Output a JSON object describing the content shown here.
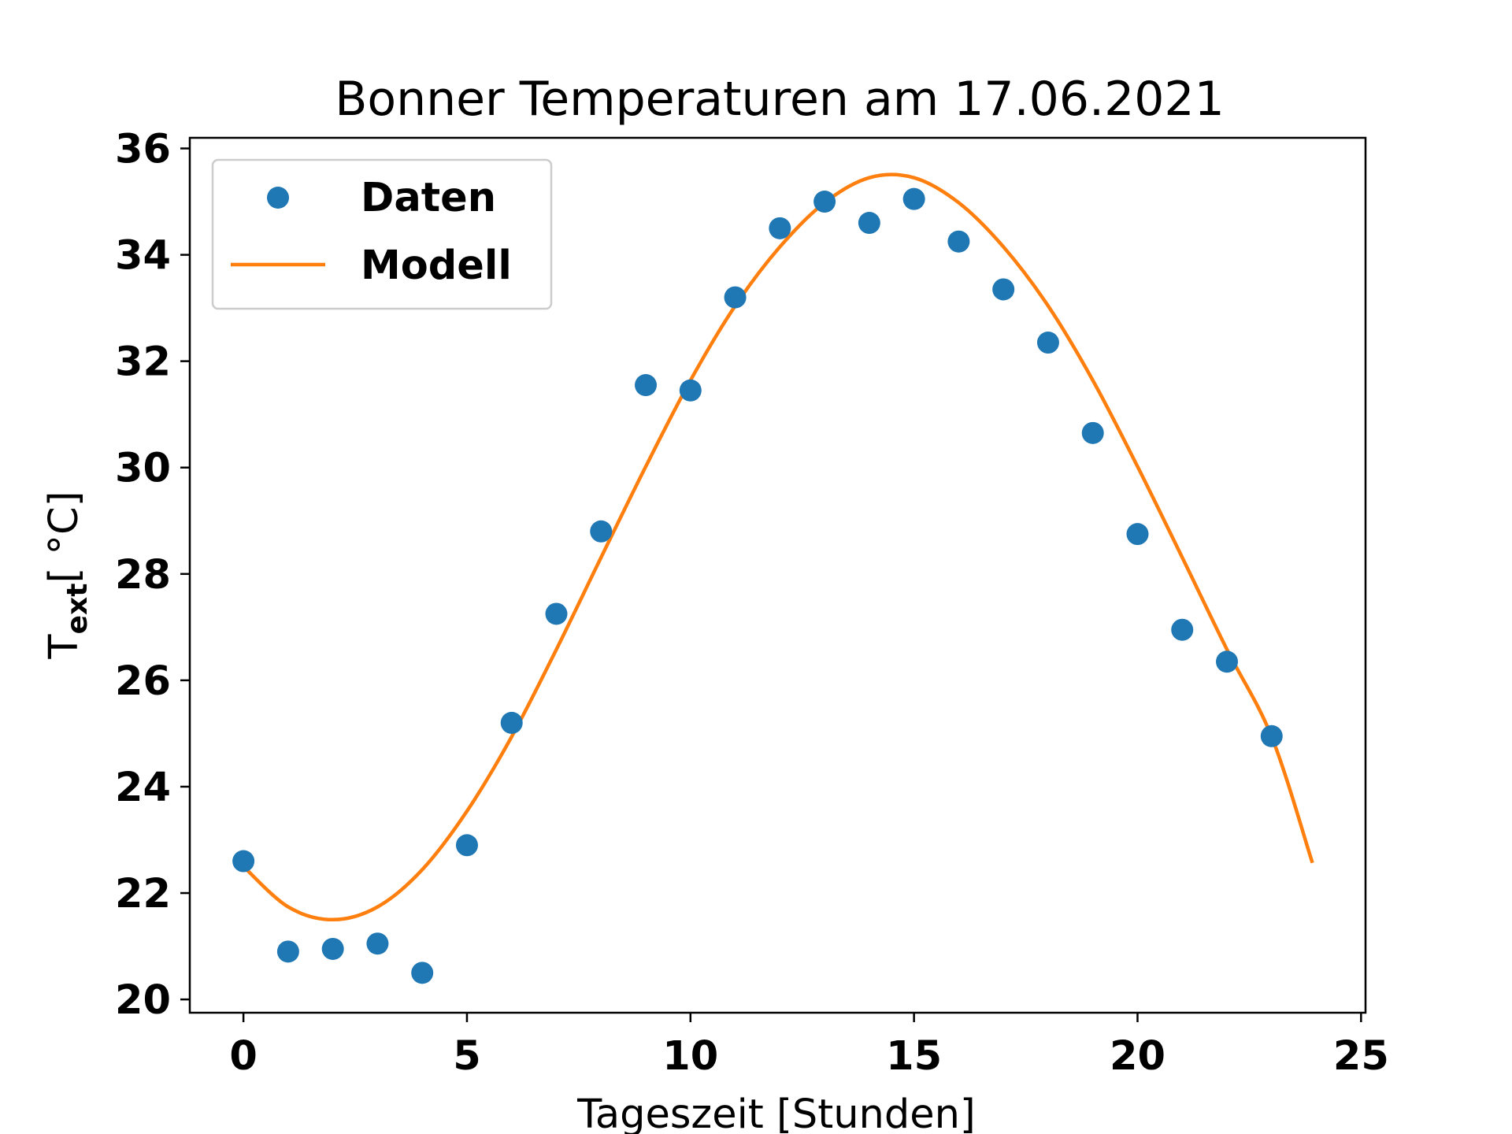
{
  "chart_data": {
    "type": "scatter",
    "title": "Bonner Temperaturen am 17.06.2021",
    "xlabel": "Tageszeit [Stunden]",
    "ylabel": "T",
    "ylabel_sub": "ext",
    "ylabel_unit": "[ °C]",
    "xlim": [
      -1.2,
      25.1
    ],
    "ylim": [
      19.75,
      36.2
    ],
    "x_ticks": [
      0,
      5,
      10,
      15,
      20,
      25
    ],
    "x_tick_labels": [
      "0",
      "5",
      "10",
      "15",
      "20",
      "25"
    ],
    "y_ticks": [
      20,
      22,
      24,
      26,
      28,
      30,
      32,
      34,
      36
    ],
    "y_tick_labels": [
      "20",
      "22",
      "24",
      "26",
      "28",
      "30",
      "32",
      "34",
      "36"
    ],
    "grid": false,
    "legend_position": "upper-left",
    "series": [
      {
        "name": "Daten",
        "type": "scatter",
        "color": "#1f77b4",
        "x": [
          0,
          1,
          2,
          3,
          4,
          5,
          6,
          7,
          8,
          9,
          10,
          11,
          12,
          13,
          14,
          15,
          16,
          17,
          18,
          19,
          20,
          21,
          22,
          23
        ],
        "y": [
          22.6,
          20.9,
          20.95,
          21.05,
          20.5,
          22.9,
          25.2,
          27.25,
          28.8,
          31.55,
          31.45,
          33.2,
          34.5,
          35.0,
          34.6,
          35.05,
          34.25,
          33.35,
          32.35,
          30.65,
          28.75,
          26.95,
          26.35,
          24.95
        ]
      },
      {
        "name": "Modell",
        "type": "line",
        "color": "#ff7f0e",
        "x": [
          0,
          1,
          2,
          3,
          4,
          5,
          6,
          7,
          8,
          9,
          10,
          11,
          12,
          13,
          14,
          15,
          16,
          17,
          18,
          19,
          20,
          21,
          22,
          23,
          23.9
        ],
        "y": [
          22.5,
          21.74,
          21.5,
          21.74,
          22.44,
          23.54,
          24.94,
          26.58,
          28.31,
          30.02,
          31.64,
          33.04,
          34.15,
          34.98,
          35.45,
          35.45,
          34.98,
          34.15,
          33.04,
          31.64,
          30.02,
          28.31,
          26.58,
          24.94,
          22.6
        ]
      }
    ]
  }
}
